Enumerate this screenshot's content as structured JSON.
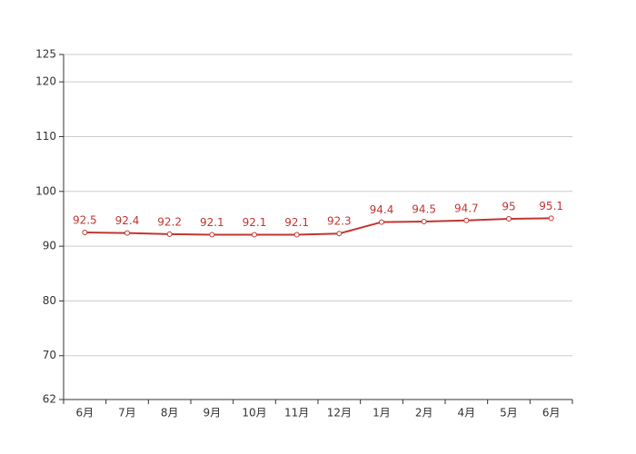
{
  "chart_data": {
    "type": "line",
    "categories": [
      "6月",
      "7月",
      "8月",
      "9月",
      "10月",
      "11月",
      "12月",
      "1月",
      "2月",
      "4月",
      "5月",
      "6月"
    ],
    "values": [
      92.5,
      92.4,
      92.2,
      92.1,
      92.1,
      92.1,
      92.3,
      94.4,
      94.5,
      94.7,
      95,
      95.1
    ],
    "color": "#c23531",
    "ylim": [
      62,
      125
    ],
    "yticks": [
      62,
      70,
      80,
      90,
      100,
      110,
      120,
      125
    ],
    "grid": true
  }
}
